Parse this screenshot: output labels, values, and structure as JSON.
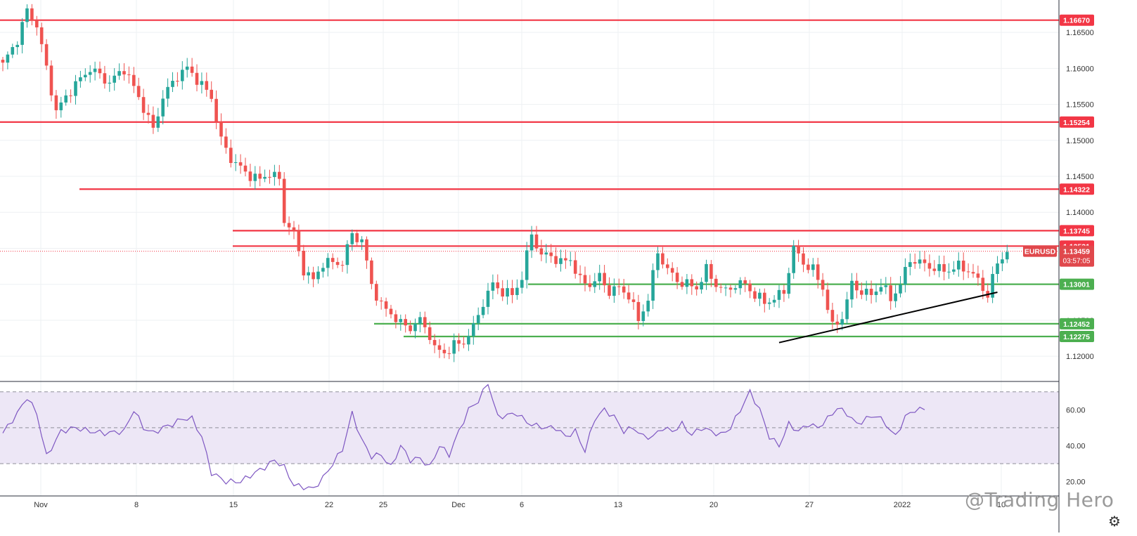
{
  "symbol": "EURUSD",
  "countdown": "03:57:05",
  "watermark": "@Trading Hero",
  "settings_icon": "gear-icon",
  "colors": {
    "up": "#26a69a",
    "down": "#ef5350",
    "resistance": "#f23645",
    "support": "#4caf50",
    "trendline": "#000000",
    "rsi_line": "#7e57c2",
    "rsi_band": "#ede7f6"
  },
  "chart_data": [
    {
      "type": "candlestick",
      "title": "",
      "x_tick_labels": [
        "Nov",
        "8",
        "15",
        "22",
        "25",
        "Dec",
        "6",
        "13",
        "20",
        "27",
        "2022",
        "10"
      ],
      "y_tick_labels": [
        "1.16500",
        "1.16000",
        "1.15500",
        "1.15000",
        "1.14500",
        "1.14000",
        "1.13500",
        "1.13000",
        "1.12500",
        "1.12000"
      ],
      "ylim": [
        1.1166,
        1.1695
      ],
      "last_price": 1.13459,
      "horizontal_levels": [
        {
          "label": "1.16670",
          "value": 1.1667,
          "role": "resistance"
        },
        {
          "label": "1.15254",
          "value": 1.15254,
          "role": "resistance"
        },
        {
          "label": "1.14322",
          "value": 1.14322,
          "role": "resistance"
        },
        {
          "label": "1.13745",
          "value": 1.13745,
          "role": "resistance"
        },
        {
          "label": "1.13531",
          "value": 1.13531,
          "role": "resistance"
        },
        {
          "label": "1.13001",
          "value": 1.13001,
          "role": "support"
        },
        {
          "label": "1.12452",
          "value": 1.12452,
          "role": "support"
        },
        {
          "label": "1.12275",
          "value": 1.12275,
          "role": "support"
        }
      ],
      "trendline": {
        "from": {
          "x": 160,
          "y": 1.1219
        },
        "to": {
          "x": 205,
          "y": 1.1289
        }
      },
      "close_series": [
        [
          0,
          1.1605
        ],
        [
          3,
          1.164
        ],
        [
          5,
          1.168
        ],
        [
          7,
          1.166
        ],
        [
          9,
          1.16
        ],
        [
          11,
          1.154
        ],
        [
          14,
          1.157
        ],
        [
          18,
          1.16
        ],
        [
          22,
          1.158
        ],
        [
          25,
          1.16
        ],
        [
          28,
          1.156
        ],
        [
          30,
          1.153
        ],
        [
          31,
          1.1515
        ],
        [
          33,
          1.156
        ],
        [
          36,
          1.159
        ],
        [
          38,
          1.16
        ],
        [
          40,
          1.1585
        ],
        [
          43,
          1.156
        ],
        [
          45,
          1.15
        ],
        [
          47,
          1.1475
        ],
        [
          50,
          1.1455
        ],
        [
          53,
          1.1445
        ],
        [
          55,
          1.1455
        ],
        [
          57,
          1.1445
        ],
        [
          58,
          1.139
        ],
        [
          60,
          1.137
        ],
        [
          62,
          1.132
        ],
        [
          64,
          1.1305
        ],
        [
          66,
          1.133
        ],
        [
          70,
          1.133
        ],
        [
          72,
          1.137
        ],
        [
          74,
          1.136
        ],
        [
          76,
          1.13
        ],
        [
          78,
          1.127
        ],
        [
          80,
          1.126
        ],
        [
          82,
          1.1245
        ],
        [
          84,
          1.124
        ],
        [
          86,
          1.125
        ],
        [
          88,
          1.123
        ],
        [
          89,
          1.121
        ],
        [
          91,
          1.1205
        ],
        [
          93,
          1.1215
        ],
        [
          95,
          1.122
        ],
        [
          97,
          1.124
        ],
        [
          99,
          1.1275
        ],
        [
          101,
          1.13
        ],
        [
          103,
          1.129
        ],
        [
          105,
          1.1285
        ],
        [
          107,
          1.131
        ],
        [
          109,
          1.137
        ],
        [
          111,
          1.134
        ],
        [
          113,
          1.134
        ],
        [
          115,
          1.133
        ],
        [
          117,
          1.1335
        ],
        [
          119,
          1.1305
        ],
        [
          121,
          1.13
        ],
        [
          123,
          1.131
        ],
        [
          125,
          1.129
        ],
        [
          127,
          1.1295
        ],
        [
          129,
          1.1285
        ],
        [
          131,
          1.125
        ],
        [
          133,
          1.128
        ],
        [
          135,
          1.1345
        ],
        [
          137,
          1.132
        ],
        [
          139,
          1.1305
        ],
        [
          141,
          1.13
        ],
        [
          143,
          1.1295
        ],
        [
          145,
          1.132
        ],
        [
          147,
          1.13
        ],
        [
          149,
          1.129
        ],
        [
          151,
          1.13
        ],
        [
          153,
          1.13
        ],
        [
          155,
          1.1285
        ],
        [
          157,
          1.1275
        ],
        [
          159,
          1.128
        ],
        [
          161,
          1.129
        ],
        [
          163,
          1.135
        ],
        [
          165,
          1.133
        ],
        [
          167,
          1.132
        ],
        [
          169,
          1.1295
        ],
        [
          171,
          1.124
        ],
        [
          173,
          1.1255
        ],
        [
          175,
          1.13
        ],
        [
          177,
          1.129
        ],
        [
          179,
          1.1285
        ],
        [
          181,
          1.13
        ],
        [
          183,
          1.128
        ],
        [
          185,
          1.13
        ],
        [
          187,
          1.1335
        ],
        [
          189,
          1.133
        ],
        [
          191,
          1.1325
        ],
        [
          193,
          1.132
        ],
        [
          195,
          1.132
        ],
        [
          197,
          1.1325
        ],
        [
          199,
          1.132
        ],
        [
          201,
          1.1305
        ],
        [
          203,
          1.1285
        ],
        [
          205,
          1.133
        ],
        [
          207,
          1.1345
        ]
      ]
    },
    {
      "type": "line",
      "title": "",
      "y_tick_labels": [
        "60.00",
        "40.00",
        "20.00"
      ],
      "ylim": [
        12,
        75
      ],
      "band": [
        30,
        70
      ],
      "midline": 50,
      "series": [
        {
          "values": [
            [
              0,
              47
            ],
            [
              3,
              58
            ],
            [
              5,
              67
            ],
            [
              7,
              58
            ],
            [
              9,
              34
            ],
            [
              12,
              48
            ],
            [
              15,
              50
            ],
            [
              18,
              48
            ],
            [
              21,
              47
            ],
            [
              25,
              48
            ],
            [
              27,
              60
            ],
            [
              29,
              50
            ],
            [
              31,
              47
            ],
            [
              33,
              50
            ],
            [
              35,
              52
            ],
            [
              37,
              55
            ],
            [
              39,
              55
            ],
            [
              41,
              45
            ],
            [
              43,
              25
            ],
            [
              46,
              20
            ],
            [
              49,
              20
            ],
            [
              52,
              25
            ],
            [
              54,
              28
            ],
            [
              56,
              32
            ],
            [
              58,
              28
            ],
            [
              60,
              18
            ],
            [
              62,
              17
            ],
            [
              64,
              16
            ],
            [
              66,
              22
            ],
            [
              68,
              30
            ],
            [
              70,
              38
            ],
            [
              72,
              58
            ],
            [
              74,
              43
            ],
            [
              76,
              34
            ],
            [
              78,
              35
            ],
            [
              80,
              28
            ],
            [
              82,
              40
            ],
            [
              84,
              32
            ],
            [
              86,
              33
            ],
            [
              88,
              28
            ],
            [
              90,
              40
            ],
            [
              92,
              35
            ],
            [
              94,
              48
            ],
            [
              96,
              60
            ],
            [
              98,
              65
            ],
            [
              100,
              75
            ],
            [
              102,
              56
            ],
            [
              104,
              57
            ],
            [
              106,
              58
            ],
            [
              108,
              53
            ],
            [
              110,
              51
            ],
            [
              112,
              50
            ],
            [
              114,
              50
            ],
            [
              116,
              45
            ],
            [
              118,
              48
            ],
            [
              120,
              37
            ],
            [
              122,
              55
            ],
            [
              124,
              60
            ],
            [
              126,
              56
            ],
            [
              128,
              48
            ],
            [
              130,
              50
            ],
            [
              132,
              45
            ],
            [
              134,
              45
            ],
            [
              136,
              50
            ],
            [
              138,
              48
            ],
            [
              140,
              52
            ],
            [
              142,
              46
            ],
            [
              144,
              50
            ],
            [
              146,
              48
            ],
            [
              148,
              46
            ],
            [
              150,
              50
            ],
            [
              152,
              60
            ],
            [
              154,
              70
            ],
            [
              156,
              60
            ],
            [
              158,
              45
            ],
            [
              160,
              40
            ],
            [
              162,
              52
            ],
            [
              164,
              48
            ],
            [
              166,
              52
            ],
            [
              168,
              50
            ],
            [
              170,
              55
            ],
            [
              172,
              61
            ],
            [
              174,
              58
            ],
            [
              176,
              52
            ],
            [
              178,
              55
            ],
            [
              180,
              57
            ],
            [
              182,
              52
            ],
            [
              184,
              45
            ],
            [
              186,
              56
            ],
            [
              188,
              60
            ],
            [
              190,
              60
            ]
          ]
        }
      ]
    }
  ]
}
